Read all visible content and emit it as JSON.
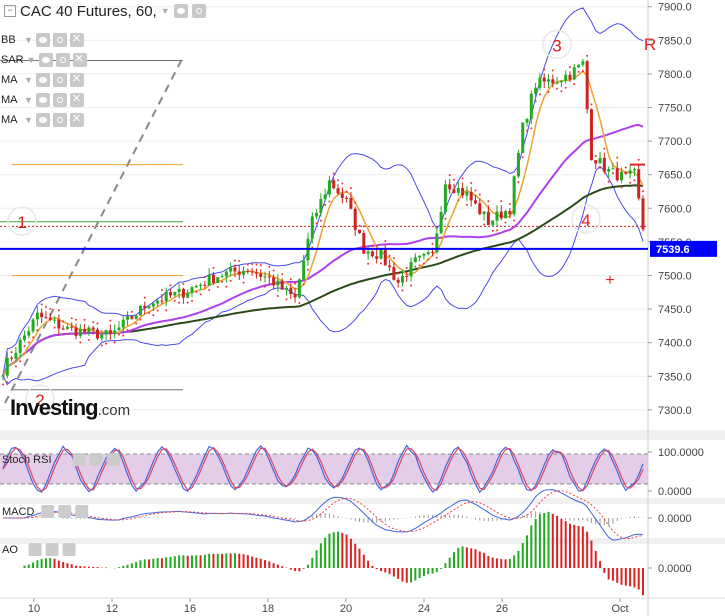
{
  "header": {
    "title": "CAC 40 Futures, 60,"
  },
  "indicators": [
    {
      "label": "BB"
    },
    {
      "label": "SAR"
    },
    {
      "label": "MA"
    },
    {
      "label": "MA"
    },
    {
      "label": "MA"
    }
  ],
  "subpanels": [
    {
      "label": "Stoch RSI",
      "values": [
        "100.0000",
        "0.0000"
      ]
    },
    {
      "label": "MACD",
      "values": [
        "0.0000"
      ]
    },
    {
      "label": "AO",
      "values": [
        "0.0000"
      ]
    }
  ],
  "logo": {
    "brand": "Investing",
    "suffix": ".com"
  },
  "chart_data": {
    "type": "candlestick",
    "ylim": [
      7270,
      7910
    ],
    "yticks": [
      7300,
      7350,
      7400,
      7450,
      7500,
      7550,
      7600,
      7650,
      7700,
      7750,
      7800,
      7850,
      7900
    ],
    "ytick_labels": [
      "7300.0",
      "7350.0",
      "7400.0",
      "7450.0",
      "7500.0",
      "7550.0",
      "7600.0",
      "7650.0",
      "7700.0",
      "7750.0",
      "7800.0",
      "7850.0",
      "7900.0"
    ],
    "x_labels": [
      "10",
      "12",
      "16",
      "18",
      "20",
      "24",
      "26",
      "Oct"
    ],
    "current_price": {
      "value": 7539.6,
      "label": "7539.6",
      "color": "#0000ff"
    },
    "annotations": [
      {
        "text": "1",
        "price": 7575
      },
      {
        "text": "2",
        "price": 7310
      },
      {
        "text": "3",
        "price": 7838
      },
      {
        "text": "4",
        "price": 7578
      },
      {
        "text": "R",
        "price": 7840,
        "color": "#e02020"
      },
      {
        "text": "+",
        "price": 7490,
        "color": "#e02020"
      }
    ],
    "horizontal_levels": [
      {
        "price": 7665,
        "color": "#f0a030"
      },
      {
        "price": 7580,
        "color": "#3aaa3a"
      },
      {
        "price": 7500,
        "color": "#f0a030"
      },
      {
        "price": 7573,
        "color": "#cc2222"
      }
    ],
    "trend_lines": [
      {
        "from": {
          "bar": 0,
          "price": 7310
        },
        "to": {
          "bar": 34,
          "price": 7825
        },
        "style": "dashed",
        "color": "#888888"
      }
    ],
    "series_colors": {
      "up": "#22aa22",
      "down": "#cc2222",
      "bb": "#4a4aee",
      "ma_fast": "#f0a030",
      "ma_mid": "#b040ee",
      "ma_slow": "#2a4a1a",
      "sar": "#ee3333"
    },
    "close_anchors": [
      [
        0,
        7360
      ],
      [
        8,
        7440
      ],
      [
        15,
        7420
      ],
      [
        25,
        7410
      ],
      [
        34,
        7460
      ],
      [
        42,
        7475
      ],
      [
        50,
        7500
      ],
      [
        57,
        7510
      ],
      [
        62,
        7495
      ],
      [
        68,
        7465
      ],
      [
        72,
        7580
      ],
      [
        76,
        7640
      ],
      [
        80,
        7610
      ],
      [
        84,
        7540
      ],
      [
        88,
        7530
      ],
      [
        92,
        7490
      ],
      [
        96,
        7520
      ],
      [
        100,
        7530
      ],
      [
        103,
        7640
      ],
      [
        108,
        7620
      ],
      [
        113,
        7580
      ],
      [
        118,
        7600
      ],
      [
        121,
        7720
      ],
      [
        124,
        7785
      ],
      [
        128,
        7790
      ],
      [
        132,
        7800
      ],
      [
        135,
        7815
      ],
      [
        137,
        7680
      ],
      [
        141,
        7655
      ],
      [
        145,
        7645
      ],
      [
        147,
        7650
      ],
      [
        149,
        7570
      ]
    ],
    "stoch_rsi": {
      "range": [
        0,
        100
      ],
      "upper_band": 80,
      "lower_band": 20
    },
    "macd": {
      "zero": 0
    },
    "ao": {
      "zero": 0
    }
  }
}
